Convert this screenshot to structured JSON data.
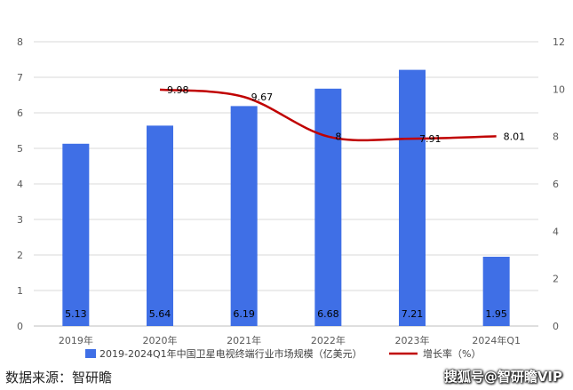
{
  "chart_data": {
    "type": "bar",
    "categories": [
      "2019年",
      "2020年",
      "2021年",
      "2022年",
      "2023年",
      "2024年Q1"
    ],
    "series": [
      {
        "name": "2019-2024Q1年中国卫星电视终端行业市场规模（亿美元）",
        "type": "bar",
        "axis": "left",
        "values": [
          5.13,
          5.64,
          6.19,
          6.68,
          7.21,
          1.95
        ],
        "color": "#3F6FE6"
      },
      {
        "name": "增长率（%）",
        "type": "line",
        "axis": "right",
        "values": [
          null,
          9.98,
          9.67,
          8,
          7.91,
          8.01
        ],
        "color": "#C00000"
      }
    ],
    "y_left": {
      "min": 0,
      "max": 8,
      "ticks": [
        0,
        1,
        2,
        3,
        4,
        5,
        6,
        7,
        8
      ]
    },
    "y_right": {
      "min": 0,
      "max": 12,
      "ticks": [
        0,
        2,
        4,
        6,
        8,
        10,
        12
      ]
    },
    "grid": true,
    "legend_position": "bottom"
  },
  "footer": {
    "source": "数据来源：智研瞻",
    "watermark": "搜狐号@智研瞻VIP"
  }
}
